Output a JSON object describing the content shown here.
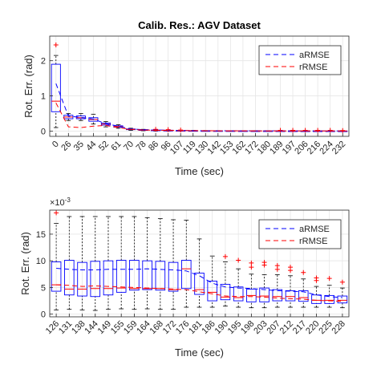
{
  "chart_data": [
    {
      "type": "box",
      "title": "Calib. Res.: AGV Dataset",
      "xlabel": "Time (sec)",
      "ylabel": "Rot. Err. (rad)",
      "ylim": [
        -0.15,
        2.7
      ],
      "yticks": [
        0,
        1,
        2
      ],
      "ytick_labels": [
        "0",
        "1",
        "2"
      ],
      "exponent_label": "",
      "grid": true,
      "legend_position": "top-right",
      "categories": [
        "0",
        "26",
        "35",
        "44",
        "52",
        "61",
        "70",
        "78",
        "86",
        "96",
        "107",
        "119",
        "130",
        "142",
        "153",
        "162",
        "172",
        "180",
        "189",
        "197",
        "206",
        "216",
        "224",
        "232"
      ],
      "boxes": [
        {
          "low": 0.1,
          "q1": 0.55,
          "med": 0.85,
          "q3": 1.9,
          "high": 2.15,
          "outliers": [
            2.45
          ]
        },
        {
          "low": 0.3,
          "q1": 0.35,
          "med": 0.4,
          "q3": 0.45,
          "high": 0.5,
          "outliers": []
        },
        {
          "low": 0.3,
          "q1": 0.35,
          "med": 0.38,
          "q3": 0.43,
          "high": 0.5,
          "outliers": []
        },
        {
          "low": 0.2,
          "q1": 0.28,
          "med": 0.33,
          "q3": 0.38,
          "high": 0.48,
          "outliers": []
        },
        {
          "low": 0.12,
          "q1": 0.17,
          "med": 0.2,
          "q3": 0.23,
          "high": 0.27,
          "outliers": []
        },
        {
          "low": 0.08,
          "q1": 0.11,
          "med": 0.13,
          "q3": 0.15,
          "high": 0.18,
          "outliers": []
        },
        {
          "low": 0.02,
          "q1": 0.04,
          "med": 0.05,
          "q3": 0.06,
          "high": 0.08,
          "outliers": []
        },
        {
          "low": 0.01,
          "q1": 0.02,
          "med": 0.03,
          "q3": 0.04,
          "high": 0.05,
          "outliers": []
        },
        {
          "low": 0.0,
          "q1": 0.01,
          "med": 0.02,
          "q3": 0.03,
          "high": 0.04,
          "outliers": [
            0.05
          ]
        },
        {
          "low": 0.0,
          "q1": 0.01,
          "med": 0.015,
          "q3": 0.02,
          "high": 0.03,
          "outliers": [
            0.04
          ]
        },
        {
          "low": 0.0,
          "q1": 0.005,
          "med": 0.01,
          "q3": 0.015,
          "high": 0.02,
          "outliers": [
            0.03
          ]
        },
        {
          "low": 0.0,
          "q1": 0.005,
          "med": 0.008,
          "q3": 0.012,
          "high": 0.018,
          "outliers": []
        },
        {
          "low": 0.0,
          "q1": 0.004,
          "med": 0.007,
          "q3": 0.01,
          "high": 0.015,
          "outliers": []
        },
        {
          "low": 0.0,
          "q1": 0.004,
          "med": 0.006,
          "q3": 0.009,
          "high": 0.013,
          "outliers": []
        },
        {
          "low": 0.0,
          "q1": 0.003,
          "med": 0.005,
          "q3": 0.008,
          "high": 0.012,
          "outliers": []
        },
        {
          "low": 0.0,
          "q1": 0.003,
          "med": 0.005,
          "q3": 0.007,
          "high": 0.011,
          "outliers": []
        },
        {
          "low": 0.0,
          "q1": 0.003,
          "med": 0.004,
          "q3": 0.006,
          "high": 0.01,
          "outliers": []
        },
        {
          "low": 0.0,
          "q1": 0.002,
          "med": 0.004,
          "q3": 0.006,
          "high": 0.009,
          "outliers": []
        },
        {
          "low": 0.0,
          "q1": 0.002,
          "med": 0.003,
          "q3": 0.005,
          "high": 0.008,
          "outliers": [
            0.02
          ]
        },
        {
          "low": 0.0,
          "q1": 0.002,
          "med": 0.003,
          "q3": 0.005,
          "high": 0.008,
          "outliers": [
            0.02
          ]
        },
        {
          "low": 0.0,
          "q1": 0.002,
          "med": 0.003,
          "q3": 0.004,
          "high": 0.007,
          "outliers": [
            0.02
          ]
        },
        {
          "low": 0.0,
          "q1": 0.002,
          "med": 0.003,
          "q3": 0.004,
          "high": 0.007,
          "outliers": [
            0.02
          ]
        },
        {
          "low": 0.0,
          "q1": 0.002,
          "med": 0.002,
          "q3": 0.004,
          "high": 0.006,
          "outliers": [
            0.02
          ]
        },
        {
          "low": 0.0,
          "q1": 0.001,
          "med": 0.002,
          "q3": 0.003,
          "high": 0.005,
          "outliers": [
            0.015
          ]
        }
      ],
      "series": [
        {
          "name": "aRMSE",
          "color": "#0000ff",
          "style": "dash",
          "values": [
            1.35,
            0.42,
            0.39,
            0.34,
            0.21,
            0.14,
            0.06,
            0.04,
            0.03,
            0.025,
            0.02,
            0.015,
            0.012,
            0.01,
            0.009,
            0.008,
            0.007,
            0.006,
            0.006,
            0.005,
            0.005,
            0.005,
            0.004,
            0.004
          ]
        },
        {
          "name": "rRMSE",
          "color": "#ff0000",
          "style": "dash",
          "values": [
            0.8,
            0.12,
            0.1,
            0.14,
            0.16,
            0.1,
            0.05,
            0.03,
            0.025,
            0.02,
            0.015,
            0.012,
            0.01,
            0.008,
            0.007,
            0.006,
            0.005,
            0.005,
            0.004,
            0.004,
            0.004,
            0.003,
            0.003,
            0.003
          ]
        }
      ]
    },
    {
      "type": "box",
      "title": "",
      "xlabel": "Time (sec)",
      "ylabel": "Rot. Err. (rad)",
      "ylim": [
        -0.0005,
        0.0195
      ],
      "yticks": [
        0,
        0.005,
        0.01,
        0.015
      ],
      "ytick_labels": [
        "0",
        "5",
        "10",
        "15"
      ],
      "exponent_label": "×10",
      "exponent_power": "-3",
      "grid": true,
      "legend_position": "top-right",
      "categories": [
        "126",
        "131",
        "138",
        "144",
        "149",
        "155",
        "159",
        "164",
        "168",
        "172",
        "176",
        "181",
        "186",
        "190",
        "195",
        "198",
        "203",
        "207",
        "212",
        "217",
        "220",
        "225",
        "228"
      ],
      "boxes": [
        {
          "low": 0.0008,
          "q1": 0.0043,
          "med": 0.0055,
          "q3": 0.0098,
          "high": 0.017,
          "outliers": [
            0.019
          ]
        },
        {
          "low": 0.0009,
          "q1": 0.0036,
          "med": 0.0047,
          "q3": 0.0101,
          "high": 0.0183,
          "outliers": []
        },
        {
          "low": 0.0008,
          "q1": 0.0034,
          "med": 0.0047,
          "q3": 0.0097,
          "high": 0.0183,
          "outliers": []
        },
        {
          "low": 0.0007,
          "q1": 0.0033,
          "med": 0.0048,
          "q3": 0.0099,
          "high": 0.0183,
          "outliers": []
        },
        {
          "low": 0.0009,
          "q1": 0.0036,
          "med": 0.0048,
          "q3": 0.01,
          "high": 0.0183,
          "outliers": []
        },
        {
          "low": 0.001,
          "q1": 0.0041,
          "med": 0.0049,
          "q3": 0.0101,
          "high": 0.0183,
          "outliers": []
        },
        {
          "low": 0.0009,
          "q1": 0.0045,
          "med": 0.0048,
          "q3": 0.0101,
          "high": 0.0183,
          "outliers": []
        },
        {
          "low": 0.001,
          "q1": 0.0046,
          "med": 0.0048,
          "q3": 0.01,
          "high": 0.0181,
          "outliers": []
        },
        {
          "low": 0.0009,
          "q1": 0.0045,
          "med": 0.0048,
          "q3": 0.0099,
          "high": 0.0179,
          "outliers": []
        },
        {
          "low": 0.0009,
          "q1": 0.0043,
          "med": 0.0046,
          "q3": 0.0097,
          "high": 0.0177,
          "outliers": []
        },
        {
          "low": 0.0013,
          "q1": 0.0048,
          "med": 0.0085,
          "q3": 0.0101,
          "high": 0.0176,
          "outliers": []
        },
        {
          "low": 0.0013,
          "q1": 0.0037,
          "med": 0.0046,
          "q3": 0.0077,
          "high": 0.0141,
          "outliers": []
        },
        {
          "low": 0.0013,
          "q1": 0.0025,
          "med": 0.0041,
          "q3": 0.0062,
          "high": 0.0109,
          "outliers": []
        },
        {
          "low": 0.0015,
          "q1": 0.0027,
          "med": 0.0032,
          "q3": 0.0056,
          "high": 0.0098,
          "outliers": [
            0.0108
          ]
        },
        {
          "low": 0.0013,
          "q1": 0.0025,
          "med": 0.0031,
          "q3": 0.0051,
          "high": 0.0085,
          "outliers": [
            0.0101
          ]
        },
        {
          "low": 0.0012,
          "q1": 0.0023,
          "med": 0.0035,
          "q3": 0.0047,
          "high": 0.0075,
          "outliers": [
            0.0088,
            0.0096
          ]
        },
        {
          "low": 0.0012,
          "q1": 0.0023,
          "med": 0.0034,
          "q3": 0.0049,
          "high": 0.0074,
          "outliers": [
            0.0092,
            0.0097
          ]
        },
        {
          "low": 0.0013,
          "q1": 0.0025,
          "med": 0.0033,
          "q3": 0.0046,
          "high": 0.0074,
          "outliers": [
            0.0084,
            0.0091
          ]
        },
        {
          "low": 0.0013,
          "q1": 0.0025,
          "med": 0.0033,
          "q3": 0.0044,
          "high": 0.0072,
          "outliers": [
            0.0082,
            0.0088
          ]
        },
        {
          "low": 0.0013,
          "q1": 0.0024,
          "med": 0.0031,
          "q3": 0.0044,
          "high": 0.0066,
          "outliers": [
            0.0078
          ]
        },
        {
          "low": 0.0013,
          "q1": 0.002,
          "med": 0.0026,
          "q3": 0.0036,
          "high": 0.0052,
          "outliers": [
            0.0063,
            0.0068
          ]
        },
        {
          "low": 0.0013,
          "q1": 0.002,
          "med": 0.0026,
          "q3": 0.0035,
          "high": 0.0054,
          "outliers": [
            0.0067
          ]
        },
        {
          "low": 0.0012,
          "q1": 0.0021,
          "med": 0.0026,
          "q3": 0.0034,
          "high": 0.0049,
          "outliers": [
            0.006
          ]
        }
      ],
      "series": [
        {
          "name": "aRMSE",
          "color": "#0000ff",
          "style": "dash",
          "values": [
            0.0086,
            0.0084,
            0.0083,
            0.0083,
            0.0084,
            0.0084,
            0.0084,
            0.0085,
            0.0084,
            0.0083,
            0.0081,
            0.0072,
            0.0058,
            0.0051,
            0.0049,
            0.0048,
            0.0046,
            0.0044,
            0.0043,
            0.0042,
            0.0036,
            0.0033,
            0.0031
          ]
        },
        {
          "name": "rRMSE",
          "color": "#ff0000",
          "style": "dash",
          "values": [
            0.0055,
            0.0054,
            0.0052,
            0.0053,
            0.0052,
            0.0051,
            0.005,
            0.0049,
            0.0048,
            0.0047,
            0.0046,
            0.0042,
            0.0038,
            0.0034,
            0.0033,
            0.0033,
            0.0032,
            0.003,
            0.0029,
            0.0028,
            0.0026,
            0.0025,
            0.0024
          ]
        }
      ]
    }
  ]
}
